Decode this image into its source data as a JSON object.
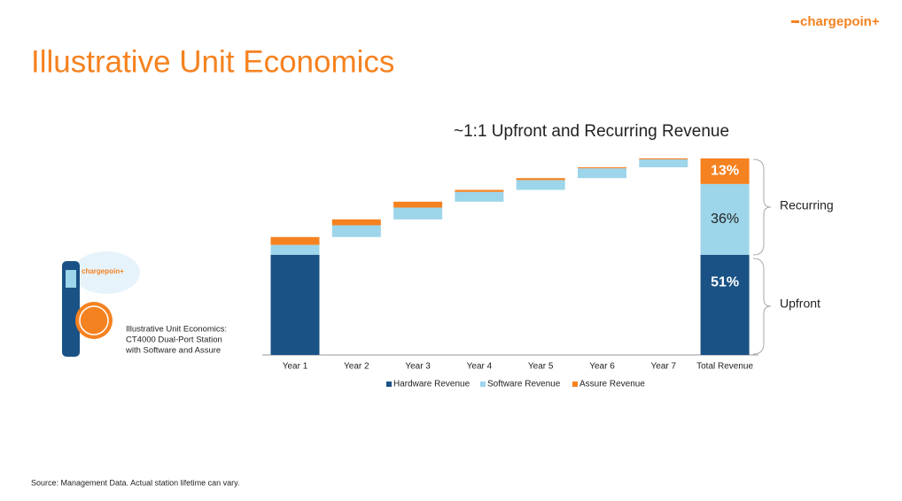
{
  "logo": "chargepoin+",
  "slide_title": "Illustrative Unit Economics",
  "caption": [
    "Illustrative Unit Economics:",
    "CT4000 Dual-Port Station",
    "with Software and Assure"
  ],
  "source": "Source: Management Data. Actual station lifetime can vary.",
  "chart_data": {
    "type": "waterfall",
    "title": "~1:1 Upfront and Recurring Revenue",
    "categories": [
      "Year 1",
      "Year 2",
      "Year 3",
      "Year 4",
      "Year 5",
      "Year 6",
      "Year 7"
    ],
    "series": [
      {
        "name": "Hardware Revenue",
        "color": "#1a5285",
        "values": [
          51,
          0,
          0,
          0,
          0,
          0,
          0
        ]
      },
      {
        "name": "Software Revenue",
        "color": "#9dd5ea",
        "values": [
          5,
          6,
          6,
          5,
          5,
          5,
          4
        ]
      },
      {
        "name": "Assure Revenue",
        "color": "#f58220",
        "values": [
          4,
          3,
          3,
          1,
          1,
          0.5,
          0.5
        ]
      }
    ],
    "total": {
      "category": "Total Revenue",
      "values": [
        51,
        36,
        13
      ],
      "value_labels": [
        "51%",
        "36%",
        "13%"
      ]
    },
    "annotations": [
      "Recurring",
      "Upfront"
    ]
  }
}
